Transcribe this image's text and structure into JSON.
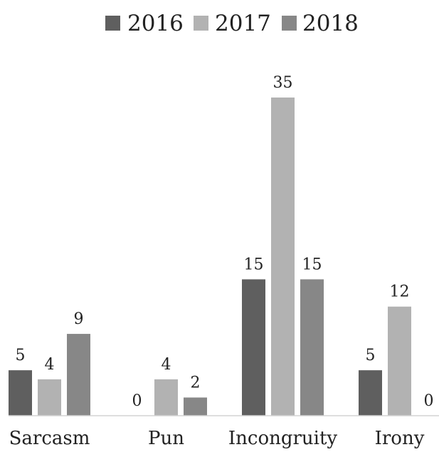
{
  "chart_data": {
    "type": "bar",
    "title": "",
    "xlabel": "",
    "ylabel": "",
    "categories": [
      "Sarcasm",
      "Pun",
      "Incongruity",
      "Irony"
    ],
    "series": [
      {
        "name": "2016",
        "color": "#5f5f5f",
        "values": [
          5,
          0,
          15,
          5
        ]
      },
      {
        "name": "2017",
        "color": "#b2b2b2",
        "values": [
          4,
          4,
          35,
          12
        ]
      },
      {
        "name": "2018",
        "color": "#878787",
        "values": [
          9,
          2,
          15,
          0
        ]
      }
    ],
    "ylim": [
      0,
      35
    ],
    "grid": false,
    "legend": "top-center",
    "data_labels": true
  }
}
